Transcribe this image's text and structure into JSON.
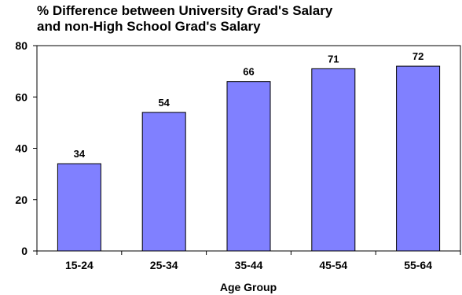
{
  "chart_data": {
    "type": "bar",
    "title_lines": [
      "% Difference between University Grad's Salary",
      "and non-High School Grad's Salary"
    ],
    "xlabel": "Age Group",
    "ylabel": "",
    "categories": [
      "15-24",
      "25-34",
      "35-44",
      "45-54",
      "55-64"
    ],
    "values": [
      34,
      54,
      66,
      71,
      72
    ],
    "data_labels": [
      "34",
      "54",
      "66",
      "71",
      "72"
    ],
    "ylim": [
      0,
      80
    ],
    "yticks": [
      0,
      20,
      40,
      60,
      80
    ],
    "ytick_labels": [
      "0",
      "20",
      "40",
      "60",
      "80"
    ],
    "grid": false,
    "legend": "none",
    "colors": {
      "bar_fill": "#8080ff",
      "bar_stroke": "#000000",
      "axis": "#000000"
    }
  }
}
